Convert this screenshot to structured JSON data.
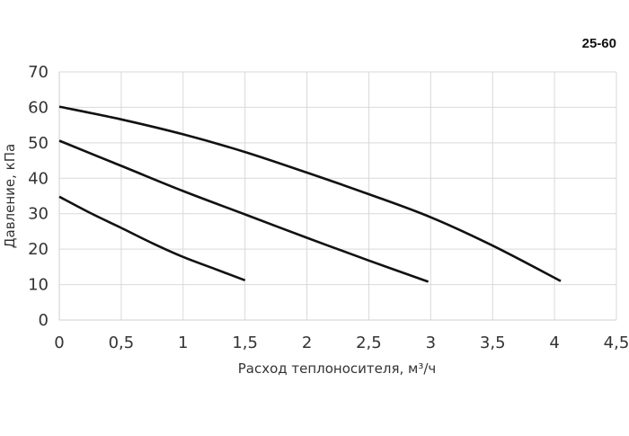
{
  "model_label": "25-60",
  "chart_data": {
    "type": "line",
    "title": "",
    "xlabel": "Расход теплоносителя, м³/ч",
    "ylabel": "Давление, кПа",
    "xlim": [
      0,
      4.5
    ],
    "ylim": [
      0,
      70
    ],
    "x_ticks": [
      0,
      0.5,
      1,
      1.5,
      2,
      2.5,
      3,
      3.5,
      4,
      4.5
    ],
    "x_tick_labels": [
      "0",
      "0,5",
      "1",
      "1,5",
      "2",
      "2,5",
      "3",
      "3,5",
      "4",
      "4,5"
    ],
    "y_ticks": [
      0,
      10,
      20,
      30,
      40,
      50,
      60,
      70
    ],
    "y_tick_labels": [
      "0",
      "10",
      "20",
      "30",
      "40",
      "50",
      "60",
      "70"
    ],
    "grid": true,
    "line_color": "#111111",
    "grid_color": "#d9d9d9",
    "series": [
      {
        "x": [
          0,
          0.5,
          1.0,
          1.5,
          2.0,
          2.5,
          3.0,
          3.5,
          4.05
        ],
        "y": [
          60.2,
          56.6,
          52.4,
          47.4,
          41.6,
          35.5,
          29.0,
          21.0,
          11.0
        ]
      },
      {
        "x": [
          0,
          0.5,
          1.0,
          1.5,
          2.0,
          2.5,
          2.98
        ],
        "y": [
          50.6,
          43.5,
          36.4,
          29.8,
          23.2,
          16.8,
          10.8
        ]
      },
      {
        "x": [
          0,
          0.25,
          0.5,
          0.75,
          1.0,
          1.25,
          1.5
        ],
        "y": [
          34.8,
          30.2,
          26.0,
          21.7,
          17.8,
          14.5,
          11.2
        ]
      }
    ]
  }
}
